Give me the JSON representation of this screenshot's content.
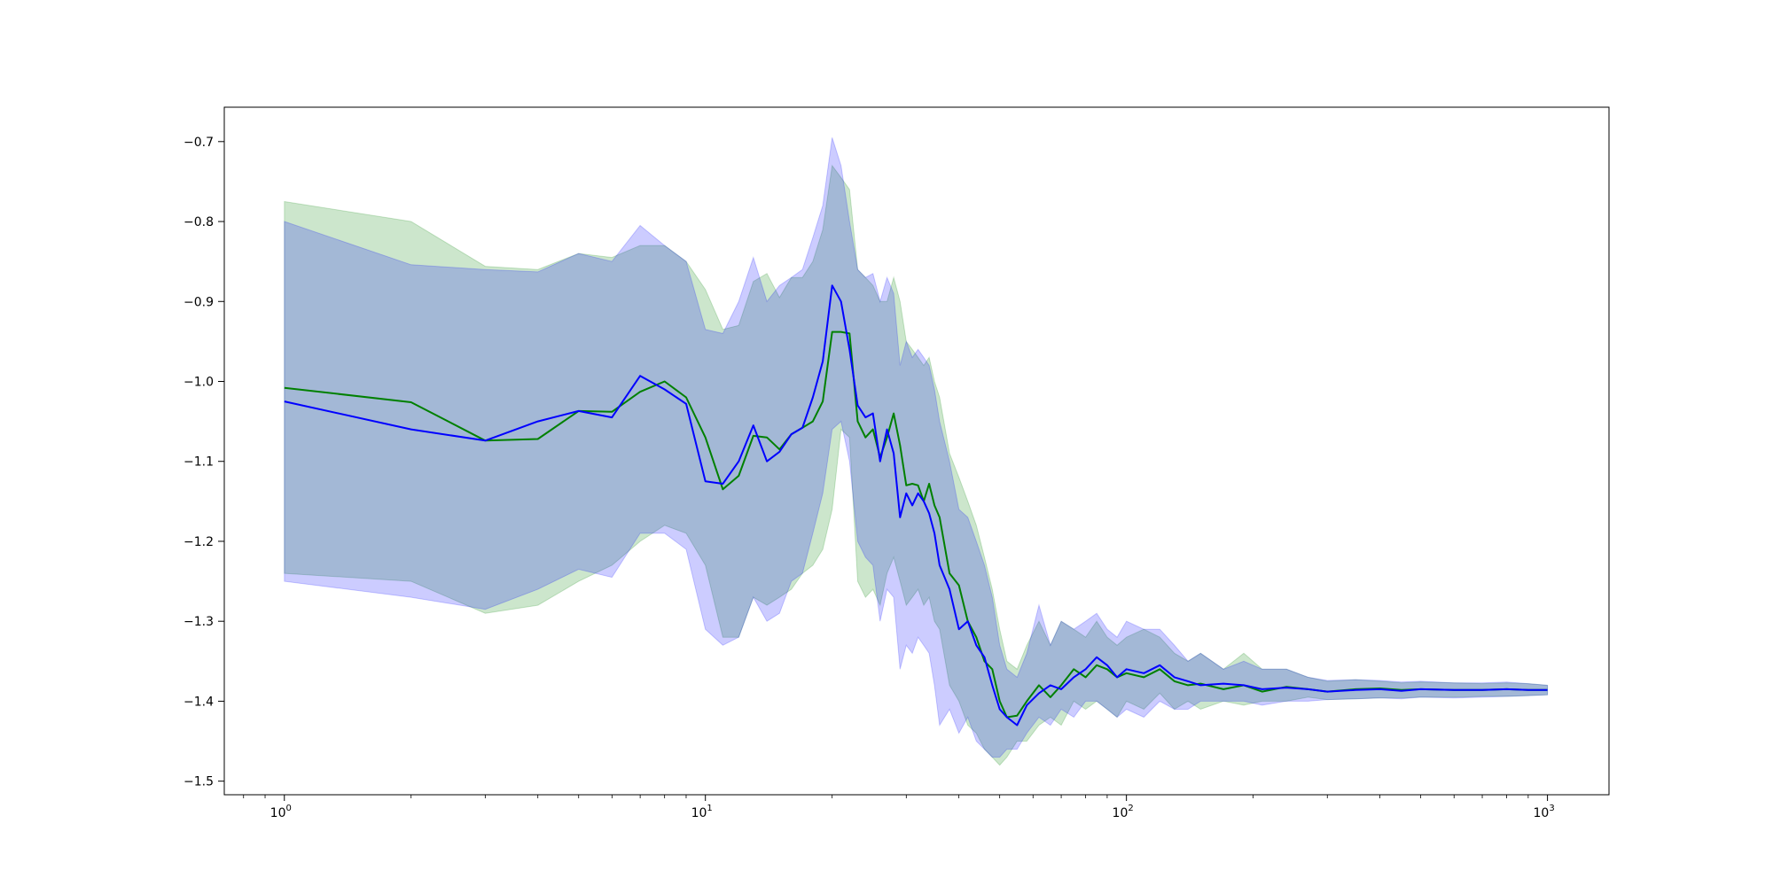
{
  "chart_data": {
    "type": "line",
    "title": "",
    "xlabel": "",
    "ylabel": "",
    "xscale": "log",
    "xlim": [
      0.72,
      1400
    ],
    "ylim": [
      -1.517,
      -0.657
    ],
    "grid": false,
    "legend": "none",
    "colors": {
      "green": "#008000",
      "green_band": "#008000",
      "blue": "#0000ff",
      "blue_band": "#0000ff",
      "frame": "#000000"
    },
    "x_ticks": [
      {
        "base": "10",
        "exp": "0",
        "value": 1
      },
      {
        "base": "10",
        "exp": "1",
        "value": 10
      },
      {
        "base": "10",
        "exp": "2",
        "value": 100
      },
      {
        "base": "10",
        "exp": "3",
        "value": 1000
      }
    ],
    "y_ticks": [
      {
        "label": "−0.7",
        "value": -0.7
      },
      {
        "label": "−0.8",
        "value": -0.8
      },
      {
        "label": "−0.9",
        "value": -0.9
      },
      {
        "label": "−1.0",
        "value": -1.0
      },
      {
        "label": "−1.1",
        "value": -1.1
      },
      {
        "label": "−1.2",
        "value": -1.2
      },
      {
        "label": "−1.3",
        "value": -1.3
      },
      {
        "label": "−1.4",
        "value": -1.4
      },
      {
        "label": "−1.5",
        "value": -1.5
      }
    ],
    "series": [
      {
        "color": "#008000",
        "x": [
          1,
          2,
          3,
          4,
          5,
          6,
          7,
          8,
          9,
          10,
          11,
          12,
          13,
          14,
          15,
          16,
          17,
          18,
          19,
          20,
          21,
          22,
          23,
          24,
          25,
          26,
          27,
          28,
          29,
          30,
          31,
          32,
          33,
          34,
          35,
          36,
          38,
          40,
          42,
          44,
          46,
          48,
          50,
          52,
          55,
          58,
          62,
          66,
          70,
          75,
          80,
          85,
          90,
          95,
          100,
          110,
          120,
          130,
          140,
          150,
          170,
          190,
          210,
          240,
          270,
          300,
          350,
          400,
          450,
          500,
          600,
          700,
          800,
          900,
          1000
        ],
        "y": [
          -1.008,
          -1.026,
          -1.074,
          -1.072,
          -1.037,
          -1.038,
          -1.013,
          -1.0,
          -1.02,
          -1.07,
          -1.135,
          -1.118,
          -1.068,
          -1.07,
          -1.085,
          -1.066,
          -1.058,
          -1.05,
          -1.025,
          -0.938,
          -0.938,
          -0.94,
          -1.05,
          -1.07,
          -1.06,
          -1.095,
          -1.07,
          -1.04,
          -1.08,
          -1.13,
          -1.128,
          -1.13,
          -1.15,
          -1.128,
          -1.155,
          -1.17,
          -1.24,
          -1.255,
          -1.3,
          -1.32,
          -1.35,
          -1.36,
          -1.4,
          -1.42,
          -1.418,
          -1.4,
          -1.38,
          -1.395,
          -1.38,
          -1.36,
          -1.37,
          -1.355,
          -1.36,
          -1.37,
          -1.365,
          -1.37,
          -1.36,
          -1.375,
          -1.38,
          -1.378,
          -1.385,
          -1.38,
          -1.388,
          -1.382,
          -1.385,
          -1.388,
          -1.385,
          -1.384,
          -1.386,
          -1.385,
          -1.386,
          -1.386,
          -1.385,
          -1.386,
          -1.386
        ],
        "lower": [
          -1.24,
          -1.25,
          -1.29,
          -1.28,
          -1.25,
          -1.23,
          -1.2,
          -1.18,
          -1.19,
          -1.23,
          -1.32,
          -1.32,
          -1.27,
          -1.28,
          -1.27,
          -1.26,
          -1.24,
          -1.23,
          -1.21,
          -1.16,
          -1.06,
          -1.07,
          -1.25,
          -1.27,
          -1.26,
          -1.28,
          -1.24,
          -1.22,
          -1.25,
          -1.28,
          -1.27,
          -1.26,
          -1.28,
          -1.27,
          -1.3,
          -1.31,
          -1.38,
          -1.4,
          -1.43,
          -1.44,
          -1.46,
          -1.47,
          -1.48,
          -1.47,
          -1.45,
          -1.45,
          -1.43,
          -1.42,
          -1.43,
          -1.4,
          -1.41,
          -1.4,
          -1.41,
          -1.42,
          -1.4,
          -1.41,
          -1.39,
          -1.41,
          -1.4,
          -1.41,
          -1.4,
          -1.405,
          -1.4,
          -1.4,
          -1.395,
          -1.398,
          -1.397,
          -1.396,
          -1.396,
          -1.395,
          -1.395,
          -1.394,
          -1.394,
          -1.393,
          -1.392
        ],
        "upper": [
          -0.775,
          -0.8,
          -0.856,
          -0.86,
          -0.84,
          -0.845,
          -0.83,
          -0.83,
          -0.85,
          -0.885,
          -0.935,
          -0.93,
          -0.875,
          -0.865,
          -0.895,
          -0.87,
          -0.87,
          -0.85,
          -0.81,
          -0.73,
          -0.745,
          -0.76,
          -0.86,
          -0.87,
          -0.88,
          -0.9,
          -0.9,
          -0.87,
          -0.9,
          -0.95,
          -0.96,
          -0.97,
          -0.98,
          -0.97,
          -1.0,
          -1.02,
          -1.09,
          -1.12,
          -1.15,
          -1.18,
          -1.22,
          -1.26,
          -1.31,
          -1.35,
          -1.36,
          -1.33,
          -1.3,
          -1.33,
          -1.3,
          -1.31,
          -1.32,
          -1.3,
          -1.32,
          -1.33,
          -1.32,
          -1.31,
          -1.32,
          -1.34,
          -1.35,
          -1.34,
          -1.36,
          -1.34,
          -1.36,
          -1.36,
          -1.37,
          -1.375,
          -1.373,
          -1.375,
          -1.377,
          -1.376,
          -1.377,
          -1.378,
          -1.377,
          -1.378,
          -1.38
        ]
      },
      {
        "color": "#0000ff",
        "x": [
          1,
          2,
          3,
          4,
          5,
          6,
          7,
          8,
          9,
          10,
          11,
          12,
          13,
          14,
          15,
          16,
          17,
          18,
          19,
          20,
          21,
          22,
          23,
          24,
          25,
          26,
          27,
          28,
          29,
          30,
          31,
          32,
          33,
          34,
          35,
          36,
          38,
          40,
          42,
          44,
          46,
          48,
          50,
          52,
          55,
          58,
          62,
          66,
          70,
          75,
          80,
          85,
          90,
          95,
          100,
          110,
          120,
          130,
          140,
          150,
          170,
          190,
          210,
          240,
          270,
          300,
          350,
          400,
          450,
          500,
          600,
          700,
          800,
          900,
          1000
        ],
        "y": [
          -1.025,
          -1.06,
          -1.074,
          -1.05,
          -1.037,
          -1.045,
          -0.993,
          -1.01,
          -1.028,
          -1.125,
          -1.128,
          -1.1,
          -1.055,
          -1.1,
          -1.088,
          -1.066,
          -1.058,
          -1.02,
          -0.975,
          -0.88,
          -0.9,
          -0.96,
          -1.03,
          -1.045,
          -1.04,
          -1.1,
          -1.06,
          -1.09,
          -1.17,
          -1.14,
          -1.155,
          -1.14,
          -1.15,
          -1.165,
          -1.19,
          -1.23,
          -1.26,
          -1.31,
          -1.3,
          -1.33,
          -1.345,
          -1.38,
          -1.41,
          -1.42,
          -1.43,
          -1.405,
          -1.39,
          -1.38,
          -1.385,
          -1.37,
          -1.36,
          -1.345,
          -1.355,
          -1.37,
          -1.36,
          -1.365,
          -1.355,
          -1.37,
          -1.375,
          -1.38,
          -1.378,
          -1.38,
          -1.385,
          -1.383,
          -1.385,
          -1.388,
          -1.386,
          -1.385,
          -1.387,
          -1.385,
          -1.386,
          -1.386,
          -1.385,
          -1.386,
          -1.386
        ],
        "lower": [
          -1.25,
          -1.27,
          -1.285,
          -1.26,
          -1.235,
          -1.245,
          -1.19,
          -1.19,
          -1.21,
          -1.31,
          -1.33,
          -1.32,
          -1.27,
          -1.3,
          -1.29,
          -1.25,
          -1.24,
          -1.19,
          -1.14,
          -1.06,
          -1.05,
          -1.1,
          -1.2,
          -1.22,
          -1.23,
          -1.3,
          -1.26,
          -1.27,
          -1.36,
          -1.33,
          -1.34,
          -1.32,
          -1.33,
          -1.34,
          -1.38,
          -1.43,
          -1.41,
          -1.44,
          -1.42,
          -1.45,
          -1.46,
          -1.47,
          -1.47,
          -1.46,
          -1.46,
          -1.44,
          -1.42,
          -1.43,
          -1.41,
          -1.42,
          -1.4,
          -1.4,
          -1.41,
          -1.42,
          -1.41,
          -1.42,
          -1.4,
          -1.41,
          -1.41,
          -1.4,
          -1.4,
          -1.4,
          -1.405,
          -1.4,
          -1.4,
          -1.398,
          -1.397,
          -1.396,
          -1.397,
          -1.395,
          -1.396,
          -1.395,
          -1.394,
          -1.393,
          -1.392
        ],
        "upper": [
          -0.8,
          -0.854,
          -0.86,
          -0.863,
          -0.84,
          -0.85,
          -0.805,
          -0.83,
          -0.85,
          -0.935,
          -0.94,
          -0.9,
          -0.845,
          -0.9,
          -0.88,
          -0.87,
          -0.86,
          -0.82,
          -0.78,
          -0.695,
          -0.73,
          -0.8,
          -0.86,
          -0.87,
          -0.865,
          -0.9,
          -0.87,
          -0.89,
          -0.98,
          -0.95,
          -0.97,
          -0.96,
          -0.97,
          -0.98,
          -1.01,
          -1.05,
          -1.1,
          -1.16,
          -1.17,
          -1.2,
          -1.23,
          -1.27,
          -1.33,
          -1.36,
          -1.37,
          -1.34,
          -1.28,
          -1.33,
          -1.3,
          -1.31,
          -1.3,
          -1.29,
          -1.31,
          -1.32,
          -1.3,
          -1.31,
          -1.31,
          -1.33,
          -1.35,
          -1.34,
          -1.36,
          -1.35,
          -1.36,
          -1.36,
          -1.37,
          -1.374,
          -1.373,
          -1.374,
          -1.376,
          -1.375,
          -1.377,
          -1.377,
          -1.376,
          -1.378,
          -1.38
        ]
      }
    ]
  }
}
